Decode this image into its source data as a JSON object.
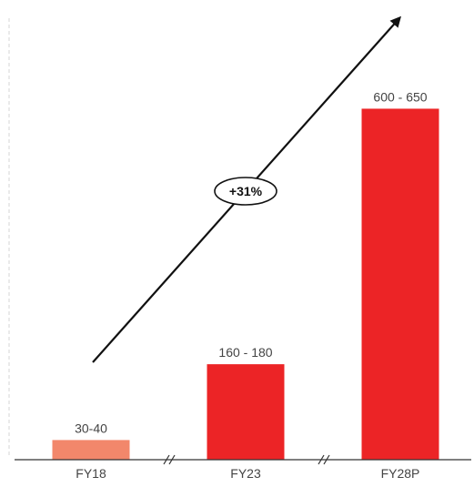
{
  "chart_data": {
    "type": "bar",
    "categories": [
      "FY18",
      "FY23",
      "FY28P"
    ],
    "value_labels": [
      "30-40",
      "160 - 180",
      "600 - 650"
    ],
    "values": [
      35,
      170,
      625
    ],
    "ylim": [
      0,
      650
    ],
    "axis_breaks": "between each category",
    "annotation": {
      "text": "+31%",
      "shape": "oval on upward trend arrow"
    },
    "colors": {
      "FY18": "#f2876b",
      "FY23": "#ec2426",
      "FY28P": "#ec2426",
      "axis": "#333333",
      "arrow": "#111111"
    },
    "grid": false,
    "legend": "none"
  }
}
